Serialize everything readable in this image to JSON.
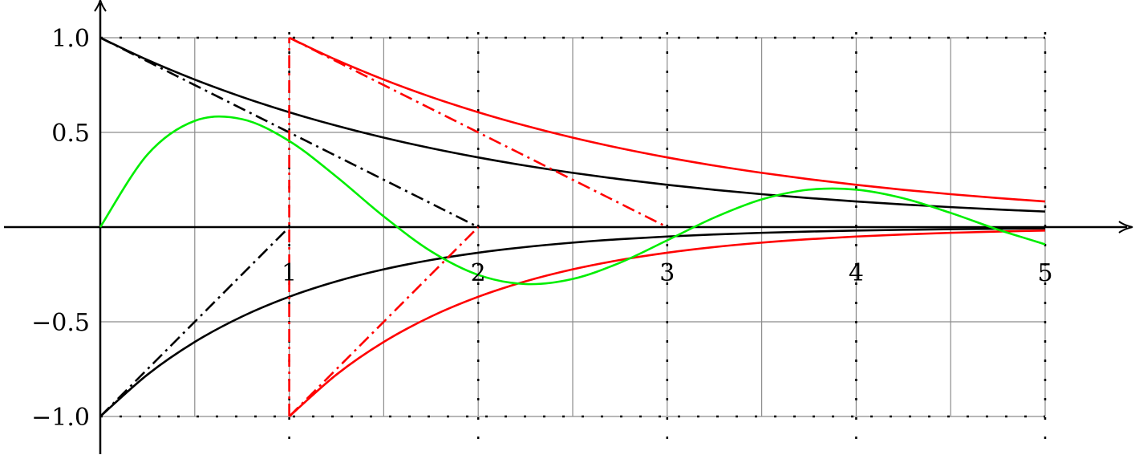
{
  "chart_data": {
    "type": "line",
    "title": "",
    "xlabel": "",
    "ylabel": "",
    "xlim": [
      0,
      5
    ],
    "ylim": [
      -1,
      1
    ],
    "grid": true,
    "grid_step_x": 0.5,
    "grid_step_y": 0.5,
    "x_ticks": [
      {
        "value": 1,
        "label": "1"
      },
      {
        "value": 2,
        "label": "2"
      },
      {
        "value": 3,
        "label": "3"
      },
      {
        "value": 4,
        "label": "4"
      },
      {
        "value": 5,
        "label": "5"
      }
    ],
    "y_ticks": [
      {
        "value": 1,
        "label": "1.0"
      },
      {
        "value": 0.5,
        "label": "0.5"
      },
      {
        "value": -0.5,
        "label": "−0.5"
      },
      {
        "value": -1,
        "label": "−1.0"
      }
    ],
    "colors": {
      "black": "#000000",
      "red": "#ff0000",
      "green": "#00ee00",
      "grid": "#8c8c8c"
    },
    "series": [
      {
        "name": "black-upper-exp",
        "color": "#000000",
        "style": "solid",
        "x0": 0,
        "step": 0.25,
        "y": [
          1,
          0.8825,
          0.7788,
          0.6873,
          0.6065,
          0.5353,
          0.4724,
          0.4169,
          0.3679,
          0.3247,
          0.2865,
          0.2528,
          0.2231,
          0.1969,
          0.1738,
          0.1534,
          0.1353,
          0.1194,
          0.1054,
          0.093,
          0.0821
        ]
      },
      {
        "name": "black-lower-exp",
        "color": "#000000",
        "style": "solid",
        "x0": 0,
        "step": 0.25,
        "y": [
          -1,
          -0.7788,
          -0.6065,
          -0.4724,
          -0.3679,
          -0.2865,
          -0.2231,
          -0.1738,
          -0.1353,
          -0.1054,
          -0.0821,
          -0.0639,
          -0.0498,
          -0.0388,
          -0.0302,
          -0.0235,
          -0.0183,
          -0.0143,
          -0.0111,
          -0.0087,
          -0.0067
        ]
      },
      {
        "name": "black-upper-tangent",
        "color": "#000000",
        "style": "dashdot",
        "points": [
          [
            0,
            1
          ],
          [
            2,
            0
          ]
        ]
      },
      {
        "name": "black-lower-tangent",
        "color": "#000000",
        "style": "dashdot",
        "points": [
          [
            0,
            -1
          ],
          [
            1,
            0
          ]
        ]
      },
      {
        "name": "red-upper-exp",
        "color": "#ff0000",
        "style": "solid",
        "x0": 1,
        "step": 0.25,
        "y": [
          1,
          0.8825,
          0.7788,
          0.6873,
          0.6065,
          0.5353,
          0.4724,
          0.4169,
          0.3679,
          0.3247,
          0.2865,
          0.2528,
          0.2231,
          0.1969,
          0.1738,
          0.1534,
          0.1353
        ]
      },
      {
        "name": "red-lower-exp",
        "color": "#ff0000",
        "style": "solid",
        "x0": 1,
        "step": 0.25,
        "y": [
          -1,
          -0.7788,
          -0.6065,
          -0.4724,
          -0.3679,
          -0.2865,
          -0.2231,
          -0.1738,
          -0.1353,
          -0.1054,
          -0.0821,
          -0.0639,
          -0.0498,
          -0.0388,
          -0.0302,
          -0.0235,
          -0.0183
        ]
      },
      {
        "name": "red-upper-tangent",
        "color": "#ff0000",
        "style": "dashdot",
        "points": [
          [
            1,
            1
          ],
          [
            3,
            0
          ]
        ]
      },
      {
        "name": "red-lower-tangent",
        "color": "#ff0000",
        "style": "dashdot",
        "points": [
          [
            1,
            -1
          ],
          [
            2,
            0
          ]
        ]
      },
      {
        "name": "red-vertical",
        "color": "#ff0000",
        "style": "dashdot",
        "points": [
          [
            1,
            -1
          ],
          [
            1,
            1
          ]
        ]
      },
      {
        "name": "green-damped-sine",
        "color": "#00ee00",
        "style": "solid",
        "x0": 0,
        "step": 0.25,
        "y": [
          0,
          0.3835,
          0.561,
          0.57,
          0.4546,
          0.266,
          0.0564,
          -0.1276,
          -0.2523,
          -0.3008,
          -0.274,
          -0.1881,
          -0.0699,
          0.0506,
          0.146,
          0.1975,
          0.1979,
          0.1521,
          0.0749,
          -0.0131,
          -0.0907
        ]
      }
    ]
  }
}
